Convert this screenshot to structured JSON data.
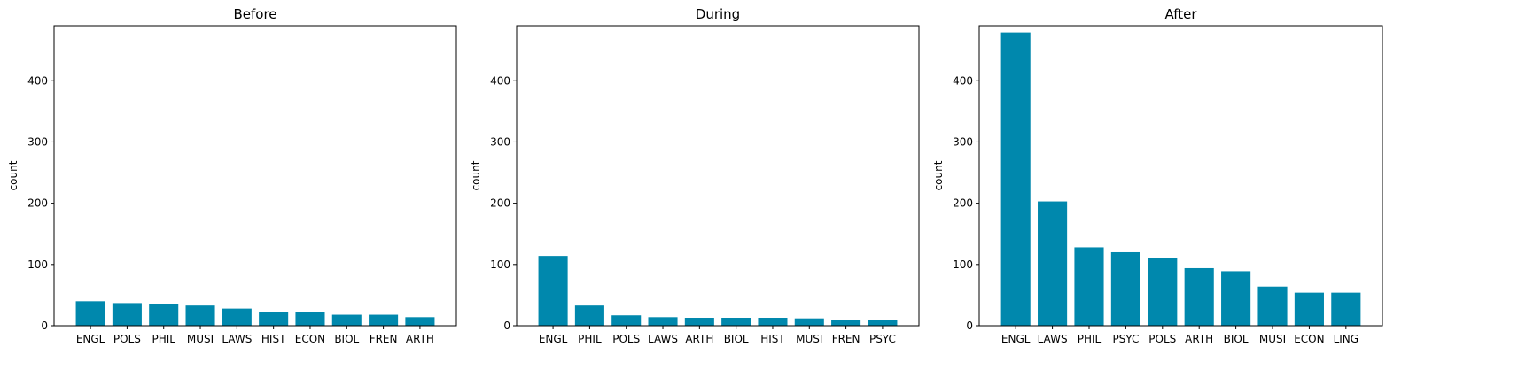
{
  "chart_data": [
    {
      "type": "bar",
      "title": "Before",
      "ylabel": "count",
      "xlabel": "",
      "ylim": [
        0,
        490
      ],
      "yticks": [
        0,
        100,
        200,
        300,
        400
      ],
      "color": "#0088ad",
      "categories": [
        "ENGL",
        "POLS",
        "PHIL",
        "MUSI",
        "LAWS",
        "HIST",
        "ECON",
        "BIOL",
        "FREN",
        "ARTH"
      ],
      "values": [
        40,
        37,
        36,
        33,
        28,
        22,
        22,
        18,
        18,
        14
      ]
    },
    {
      "type": "bar",
      "title": "During",
      "ylabel": "count",
      "xlabel": "",
      "ylim": [
        0,
        490
      ],
      "yticks": [
        0,
        100,
        200,
        300,
        400
      ],
      "color": "#0088ad",
      "categories": [
        "ENGL",
        "PHIL",
        "POLS",
        "LAWS",
        "ARTH",
        "BIOL",
        "HIST",
        "MUSI",
        "FREN",
        "PSYC"
      ],
      "values": [
        114,
        33,
        17,
        14,
        13,
        13,
        13,
        12,
        10,
        10
      ]
    },
    {
      "type": "bar",
      "title": "After",
      "ylabel": "count",
      "xlabel": "",
      "ylim": [
        0,
        490
      ],
      "yticks": [
        0,
        100,
        200,
        300,
        400
      ],
      "color": "#0088ad",
      "categories": [
        "ENGL",
        "LAWS",
        "PHIL",
        "PSYC",
        "POLS",
        "ARTH",
        "BIOL",
        "MUSI",
        "ECON",
        "LING"
      ],
      "values": [
        479,
        203,
        128,
        120,
        110,
        94,
        89,
        64,
        54,
        54
      ]
    }
  ]
}
